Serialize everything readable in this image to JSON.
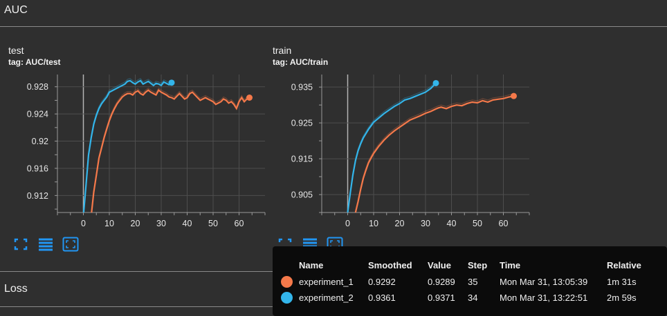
{
  "section": {
    "title": "AUC"
  },
  "loss_section": {
    "title": "Loss"
  },
  "cards": [
    {
      "title": "test",
      "tag": "tag: AUC/test"
    },
    {
      "title": "train",
      "tag": "tag: AUC/train"
    }
  ],
  "colors": {
    "experiment_1": "#f5794a",
    "experiment_2": "#33b5ea",
    "background": "#2f2f2f",
    "tooltip_bg": "#0b0b0b"
  },
  "icons": [
    "fit-domain-icon",
    "toggle-log-icon",
    "fullscreen-icon"
  ],
  "chart_data": [
    {
      "type": "line",
      "title": "test",
      "xlim": [
        -10,
        70
      ],
      "ylim": [
        0.9095,
        0.9298
      ],
      "xticks": [
        0,
        10,
        20,
        30,
        40,
        50,
        60
      ],
      "xtick_labels": [
        "0",
        "10",
        "20",
        "30",
        "40",
        "50",
        "60"
      ],
      "yticks": [
        0.912,
        0.916,
        0.92,
        0.924,
        0.928
      ],
      "ytick_labels": [
        "0.912",
        "0.916",
        "0.92",
        "0.924",
        "0.928"
      ],
      "grid": true,
      "series": [
        {
          "name": "experiment_1",
          "color": "#f5794a",
          "x": [
            3,
            4,
            5,
            6,
            7,
            8,
            9,
            10,
            11,
            12,
            13,
            14,
            15,
            16,
            17,
            18,
            19,
            20,
            21,
            22,
            23,
            24,
            25,
            26,
            27,
            28,
            29,
            30,
            31,
            32,
            33,
            34,
            35,
            36,
            37,
            38,
            39,
            40,
            41,
            42,
            43,
            44,
            45,
            46,
            47,
            48,
            49,
            50,
            51,
            52,
            53,
            54,
            55,
            56,
            57,
            58,
            59,
            60,
            61,
            62,
            63,
            64
          ],
          "y": [
            0.909,
            0.9125,
            0.915,
            0.9175,
            0.919,
            0.9205,
            0.9218,
            0.923,
            0.924,
            0.9248,
            0.9255,
            0.926,
            0.9265,
            0.9268,
            0.927,
            0.927,
            0.9268,
            0.9272,
            0.9274,
            0.927,
            0.9268,
            0.9272,
            0.9275,
            0.9272,
            0.927,
            0.9268,
            0.9275,
            0.9272,
            0.927,
            0.9268,
            0.9265,
            0.9264,
            0.9262,
            0.9266,
            0.927,
            0.9266,
            0.9262,
            0.9264,
            0.927,
            0.9272,
            0.9268,
            0.9264,
            0.926,
            0.9262,
            0.9264,
            0.9262,
            0.926,
            0.9258,
            0.9254,
            0.9256,
            0.9258,
            0.9262,
            0.926,
            0.9256,
            0.9258,
            0.9254,
            0.9248,
            0.9258,
            0.9264,
            0.9258,
            0.9262,
            0.9264
          ]
        },
        {
          "name": "experiment_2",
          "color": "#33b5ea",
          "x": [
            0,
            1,
            2,
            3,
            4,
            5,
            6,
            7,
            8,
            9,
            10,
            11,
            12,
            13,
            14,
            15,
            16,
            17,
            18,
            19,
            20,
            21,
            22,
            23,
            24,
            25,
            26,
            27,
            28,
            29,
            30,
            31,
            32,
            33,
            34
          ],
          "y": [
            0.909,
            0.9135,
            0.918,
            0.9205,
            0.9225,
            0.9238,
            0.9248,
            0.9255,
            0.926,
            0.9265,
            0.9272,
            0.9274,
            0.9276,
            0.9278,
            0.928,
            0.9282,
            0.9284,
            0.9288,
            0.9289,
            0.9286,
            0.9284,
            0.9287,
            0.9289,
            0.9284,
            0.9286,
            0.9288,
            0.9285,
            0.9282,
            0.9285,
            0.9284,
            0.9282,
            0.9287,
            0.9285,
            0.9283,
            0.9286
          ]
        }
      ]
    },
    {
      "type": "line",
      "title": "train",
      "xlim": [
        -10,
        70
      ],
      "ylim": [
        0.9,
        0.9385
      ],
      "xticks": [
        0,
        10,
        20,
        30,
        40,
        50,
        60
      ],
      "xtick_labels": [
        "0",
        "10",
        "20",
        "30",
        "40",
        "50",
        "60"
      ],
      "yticks": [
        0.905,
        0.915,
        0.925,
        0.935
      ],
      "ytick_labels": [
        "0.905",
        "0.915",
        "0.925",
        "0.935"
      ],
      "grid": true,
      "series": [
        {
          "name": "experiment_1",
          "color": "#f5794a",
          "x": [
            3,
            4,
            5,
            6,
            7,
            8,
            9,
            10,
            12,
            14,
            16,
            18,
            20,
            22,
            24,
            26,
            28,
            30,
            32,
            34,
            35,
            36,
            38,
            40,
            42,
            44,
            46,
            48,
            50,
            52,
            54,
            56,
            58,
            60,
            62,
            64
          ],
          "y": [
            0.9,
            0.903,
            0.9065,
            0.9095,
            0.9118,
            0.9138,
            0.9152,
            0.9165,
            0.9185,
            0.9202,
            0.9216,
            0.9228,
            0.9238,
            0.9248,
            0.9258,
            0.9264,
            0.927,
            0.9277,
            0.9282,
            0.9289,
            0.9292,
            0.9294,
            0.929,
            0.9296,
            0.93,
            0.9298,
            0.9304,
            0.9308,
            0.9306,
            0.9312,
            0.9308,
            0.9314,
            0.9316,
            0.9318,
            0.9322,
            0.9325
          ]
        },
        {
          "name": "experiment_2",
          "color": "#33b5ea",
          "x": [
            0,
            1,
            2,
            3,
            4,
            5,
            6,
            7,
            8,
            9,
            10,
            12,
            14,
            16,
            18,
            20,
            22,
            24,
            26,
            28,
            30,
            32,
            34
          ],
          "y": [
            0.9,
            0.9055,
            0.9105,
            0.9145,
            0.9172,
            0.9192,
            0.9208,
            0.922,
            0.9232,
            0.9242,
            0.9252,
            0.9264,
            0.9276,
            0.9286,
            0.9296,
            0.9304,
            0.9314,
            0.9318,
            0.9324,
            0.933,
            0.9336,
            0.9346,
            0.9361
          ]
        }
      ]
    }
  ],
  "tooltip": {
    "headers": [
      "Name",
      "Smoothed",
      "Value",
      "Step",
      "Time",
      "Relative"
    ],
    "rows": [
      {
        "name": "experiment_1",
        "smoothed": "0.9292",
        "value": "0.9289",
        "step": "35",
        "time": "Mon Mar 31, 13:05:39",
        "relative": "1m 31s",
        "color": "#f5794a"
      },
      {
        "name": "experiment_2",
        "smoothed": "0.9361",
        "value": "0.9371",
        "step": "34",
        "time": "Mon Mar 31, 13:22:51",
        "relative": "2m 59s",
        "color": "#33b5ea"
      }
    ]
  }
}
